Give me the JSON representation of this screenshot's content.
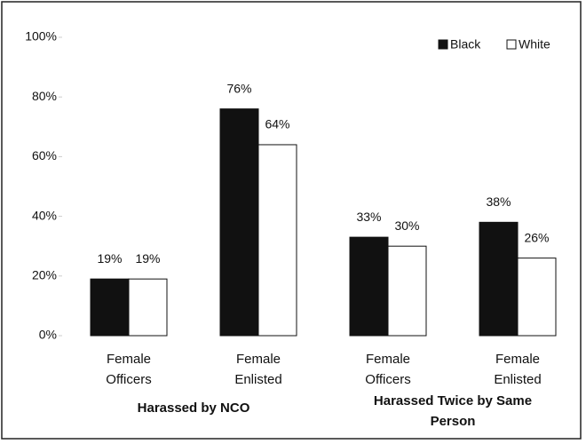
{
  "chart_data": {
    "type": "bar",
    "categories": [
      "Female Officers",
      "Female Enlisted",
      "Female Officers",
      "Female Enlisted"
    ],
    "category_groups": [
      "Harassed by NCO",
      "Harassed Twice by Same Person"
    ],
    "series": [
      {
        "name": "Black",
        "color": "#111111",
        "values": [
          19,
          76,
          33,
          38
        ],
        "value_labels": [
          "19%",
          "76%",
          "33%",
          "38%"
        ]
      },
      {
        "name": "White",
        "color": "#ffffff",
        "values": [
          19,
          64,
          30,
          26
        ],
        "value_labels": [
          "19%",
          "64%",
          "30%",
          "26%"
        ]
      }
    ],
    "ylim": [
      0,
      100
    ],
    "yticks": [
      {
        "value": 0,
        "label": "0%"
      },
      {
        "value": 20,
        "label": "20%"
      },
      {
        "value": 40,
        "label": "40%"
      },
      {
        "value": 60,
        "label": "60%"
      },
      {
        "value": 80,
        "label": "80%"
      },
      {
        "value": 100,
        "label": "100%"
      }
    ],
    "legend": "top-right"
  }
}
